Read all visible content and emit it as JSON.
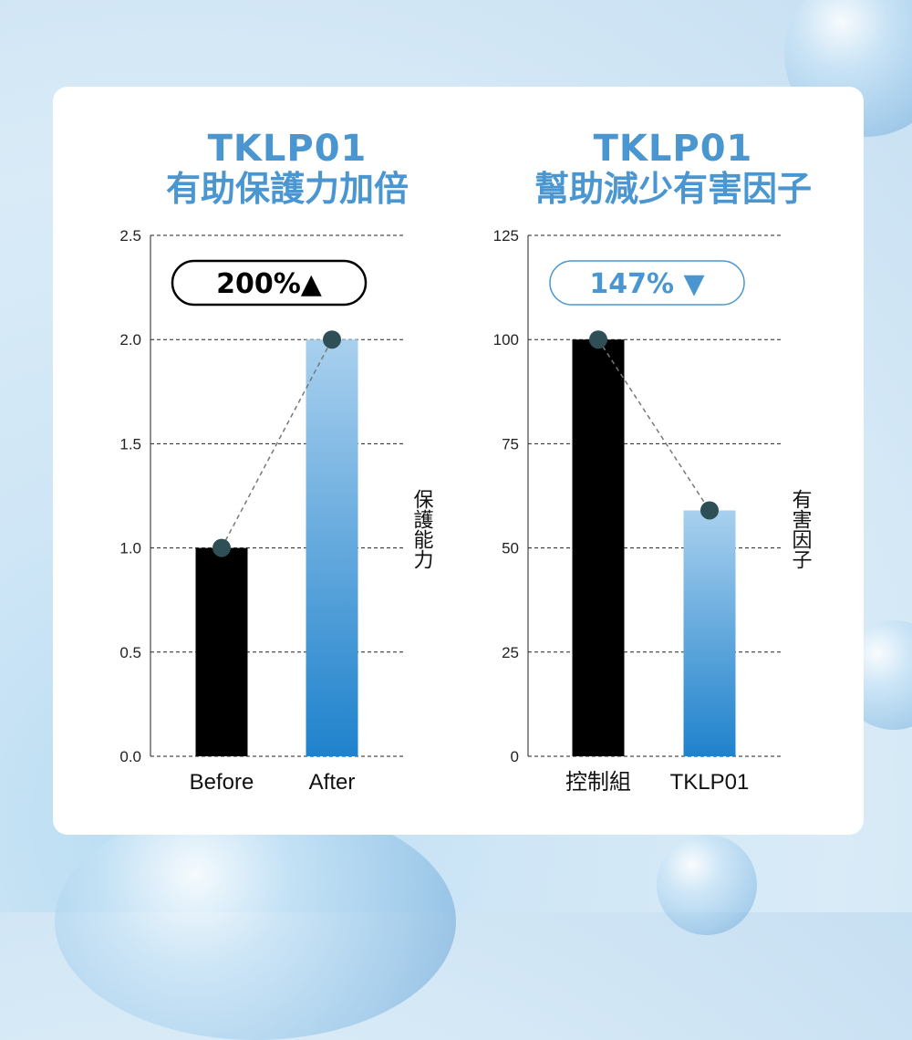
{
  "chart_data": [
    {
      "type": "bar",
      "title": "TKLP01",
      "subtitle": "有助保護力加倍",
      "categories": [
        "Before",
        "After"
      ],
      "values": [
        1.0,
        2.0
      ],
      "ylim": [
        0,
        2.5
      ],
      "yticks": [
        "0.0",
        "0.5",
        "1.0",
        "1.5",
        "2.0",
        "2.5"
      ],
      "ylabel": "保護能力",
      "badge": "200%▲",
      "grid": true,
      "bar_colors": [
        "#000000",
        "gradient-blue"
      ]
    },
    {
      "type": "bar",
      "title": "TKLP01",
      "subtitle": "幫助減少有害因子",
      "categories": [
        "控制組",
        "TKLP01"
      ],
      "values": [
        100,
        59
      ],
      "ylim": [
        0,
        125
      ],
      "yticks": [
        "0",
        "25",
        "50",
        "75",
        "100",
        "125"
      ],
      "ylabel": "有害因子",
      "badge": "147% ▼",
      "grid": true,
      "bar_colors": [
        "#000000",
        "gradient-blue"
      ]
    }
  ],
  "colors": {
    "accent": "#4a96d0",
    "bar_dark": "#000000",
    "bar_blue_top": "#a9d0ee",
    "bar_blue_bottom": "#1f82cc",
    "marker": "#2f4f57"
  }
}
